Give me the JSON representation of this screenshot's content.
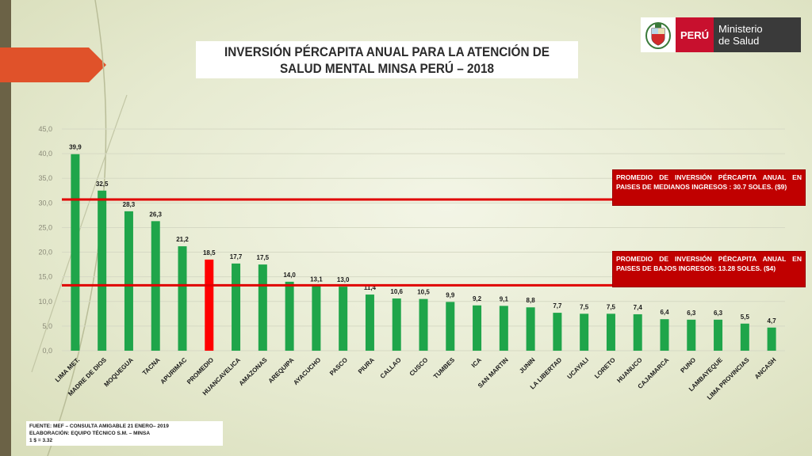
{
  "title": "INVERSIÓN PÉRCAPITA ANUAL  PARA LA ATENCIÓN DE SALUD MENTAL  MINSA PERÚ – 2018",
  "logo": {
    "country": "PERÚ",
    "ministry_line1": "Ministerio",
    "ministry_line2": "de Salud"
  },
  "colors": {
    "bar": "#1fa54a",
    "highlight_bar": "#ff0000",
    "reference_line": "#e00000",
    "callout_bg": "#c00000"
  },
  "chart_data": {
    "type": "bar",
    "categories": [
      "LIMA MET.",
      "MADRE DE DIOS",
      "MOQUEGUA",
      "TACNA",
      "APURIMAC",
      "PROMEDIO",
      "HUANCAVELICA",
      "AMAZONAS",
      "AREQUIPA",
      "AYACUCHO",
      "PASCO",
      "PIURA",
      "CALLAO",
      "CUSCO",
      "TUMBES",
      "ICA",
      "SAN MARTIN",
      "JUNIN",
      "LA LIBERTAD",
      "UCAYALI",
      "LORETO",
      "HUANUCO",
      "CAJAMARCA",
      "PUNO",
      "LAMBAYEQUE",
      "LIMA PROVINCIAS",
      "ANCASH"
    ],
    "values": [
      39.9,
      32.5,
      28.3,
      26.3,
      21.2,
      18.5,
      17.7,
      17.5,
      14.0,
      13.1,
      13.0,
      11.4,
      10.6,
      10.5,
      9.9,
      9.2,
      9.1,
      8.8,
      7.7,
      7.5,
      7.5,
      7.4,
      6.4,
      6.3,
      6.3,
      5.5,
      4.7
    ],
    "data_labels": [
      "39,9",
      "32,5",
      "28,3",
      "26,3",
      "21,2",
      "18,5",
      "17,7",
      "17,5",
      "14,0",
      "13,1",
      "13,0",
      "11,4",
      "10,6",
      "10,5",
      "9,9",
      "9,2",
      "9,1",
      "8,8",
      "7,7",
      "7,5",
      "7,5",
      "7,4",
      "6,4",
      "6,3",
      "6,3",
      "5,5",
      "4,7"
    ],
    "highlight_category": "PROMEDIO",
    "yticks": [
      "0,0",
      "5,0",
      "10,0",
      "15,0",
      "20,0",
      "25,0",
      "30,0",
      "35,0",
      "40,0",
      "45,0"
    ],
    "ylim": [
      0,
      45
    ],
    "ytick_step": 5,
    "grid": true,
    "reference_lines": [
      {
        "value": 30.7,
        "label": "PROMEDIO DE INVERSIÓN PÉRCAPITA ANUAL EN PAISES DE MEDIANOS  INGRESOS :  30.7 SOLES. ($9)"
      },
      {
        "value": 13.28,
        "label": "PROMEDIO DE INVERSIÓN PÉRCAPITA ANUAL EN PAISES DE BAJOS INGRESOS: 13.28 SOLES. ($4)"
      }
    ]
  },
  "source": {
    "line1": "FUENTE: MEF – CONSULTA AMIGABLE 21 ENERO– 2019",
    "line2": "ELABORACIÓN: EQUIPO TÉCNICO S.M. – MINSA",
    "line3": "1 $ = 3.32"
  }
}
